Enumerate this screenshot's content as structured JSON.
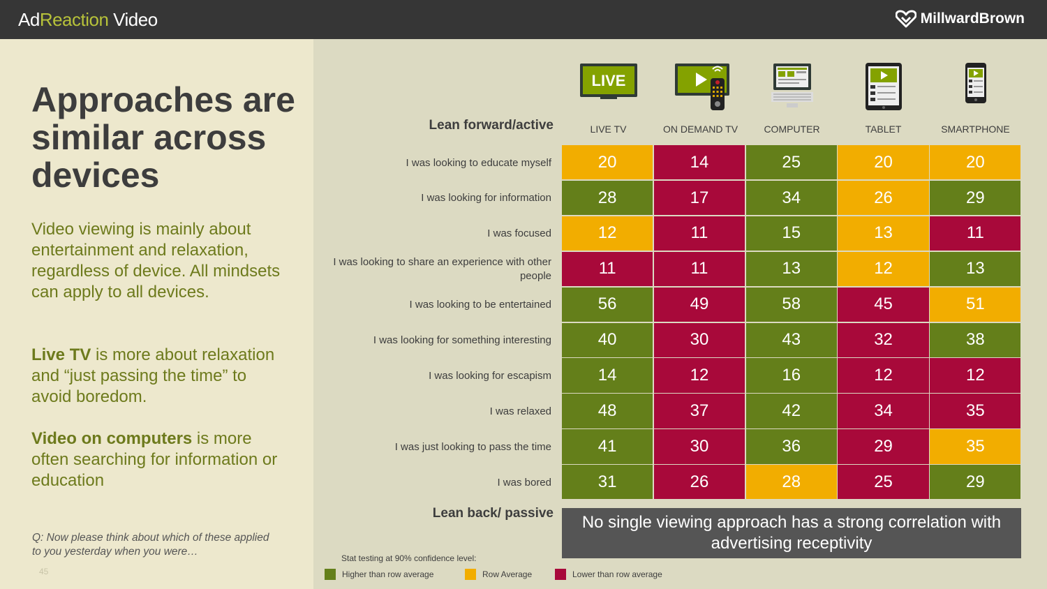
{
  "header": {
    "brand_prefix": "Ad",
    "brand_accent": "Reaction",
    "brand_suffix": " Video",
    "logo_text": "MillwardBrown"
  },
  "left": {
    "headline": "Approaches are similar across devices",
    "para1": "Video viewing is mainly about entertainment and relaxation, regardless of device. All mindsets can apply to all devices.",
    "para2_bold": "Live TV",
    "para2_rest": " is more about relaxation and “just passing the time” to avoid boredom.",
    "para3_bold": "Video on computers",
    "para3_rest": " is more often searching for information or education",
    "question": "Q:  Now please think about which of these applied to you yesterday when you were…",
    "page_number": "45"
  },
  "icons": {
    "live_badge": "LIVE",
    "names": [
      "live-tv-icon",
      "on-demand-tv-icon",
      "computer-icon",
      "tablet-icon",
      "smartphone-icon"
    ]
  },
  "colors": {
    "higher": "#647f1a",
    "average": "#f2ad00",
    "lower": "#a8093a",
    "panel": "#ede8cd",
    "background": "#dcdac2",
    "header": "#363636"
  },
  "chart_data": {
    "type": "table",
    "top_label": "Lean forward/active",
    "bottom_label": "Lean back/ passive",
    "columns": [
      "LIVE TV",
      "ON DEMAND TV",
      "COMPUTER",
      "TABLET",
      "SMARTPHONE"
    ],
    "rows": [
      {
        "label": "I was looking to educate myself",
        "values": [
          20,
          14,
          25,
          20,
          20
        ],
        "status": [
          "average",
          "lower",
          "higher",
          "average",
          "average"
        ]
      },
      {
        "label": "I was looking for information",
        "values": [
          28,
          17,
          34,
          26,
          29
        ],
        "status": [
          "higher",
          "lower",
          "higher",
          "average",
          "higher"
        ]
      },
      {
        "label": "I was focused",
        "values": [
          12,
          11,
          15,
          13,
          11
        ],
        "status": [
          "average",
          "lower",
          "higher",
          "average",
          "lower"
        ]
      },
      {
        "label": "I was looking to share an experience with other people",
        "values": [
          11,
          11,
          13,
          12,
          13
        ],
        "status": [
          "lower",
          "lower",
          "higher",
          "average",
          "higher"
        ]
      },
      {
        "label": "I was looking to be entertained",
        "values": [
          56,
          49,
          58,
          45,
          51
        ],
        "status": [
          "higher",
          "lower",
          "higher",
          "lower",
          "average"
        ]
      },
      {
        "label": "I was looking for something interesting",
        "values": [
          40,
          30,
          43,
          32,
          38
        ],
        "status": [
          "higher",
          "lower",
          "higher",
          "lower",
          "higher"
        ]
      },
      {
        "label": "I was looking for escapism",
        "values": [
          14,
          12,
          16,
          12,
          12
        ],
        "status": [
          "higher",
          "lower",
          "higher",
          "lower",
          "lower"
        ]
      },
      {
        "label": "I was relaxed",
        "values": [
          48,
          37,
          42,
          34,
          35
        ],
        "status": [
          "higher",
          "lower",
          "higher",
          "lower",
          "lower"
        ]
      },
      {
        "label": "I was just looking to pass the time",
        "values": [
          41,
          30,
          36,
          29,
          35
        ],
        "status": [
          "higher",
          "lower",
          "higher",
          "lower",
          "average"
        ]
      },
      {
        "label": "I was bored",
        "values": [
          31,
          26,
          28,
          25,
          29
        ],
        "status": [
          "higher",
          "lower",
          "average",
          "lower",
          "higher"
        ]
      }
    ],
    "legend": [
      {
        "key": "higher",
        "label": "Higher than row average"
      },
      {
        "key": "average",
        "label": "Row Average"
      },
      {
        "key": "lower",
        "label": "Lower than row average"
      }
    ],
    "stat_note": "Stat testing at 90% confidence level:"
  },
  "banner": "No single viewing approach has a strong correlation with advertising receptivity"
}
